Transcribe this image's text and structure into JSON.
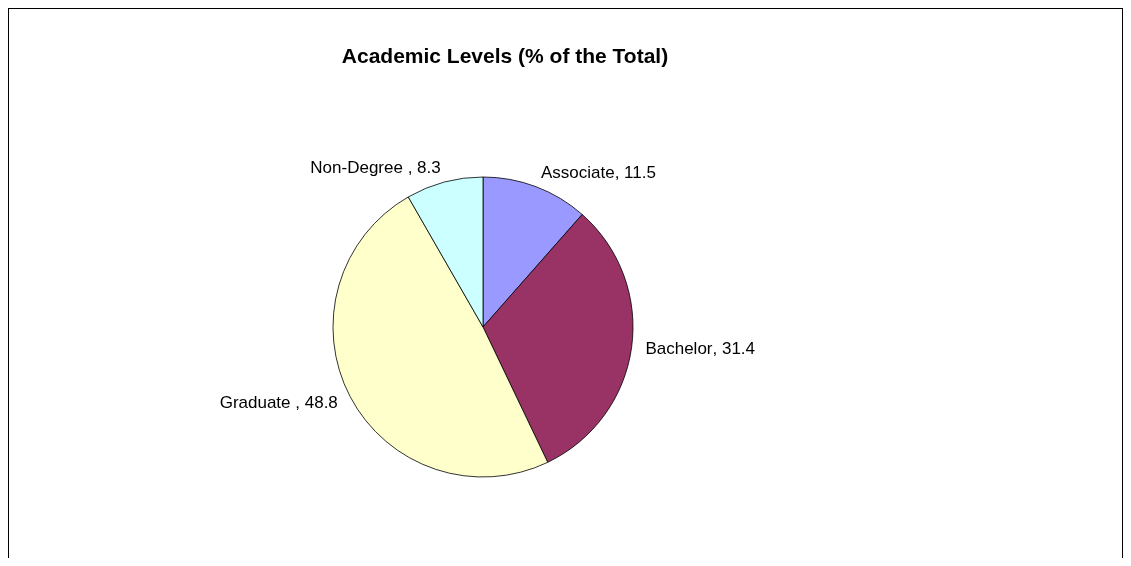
{
  "chart_data": {
    "type": "pie",
    "title": "Academic Levels (% of the Total)",
    "categories": [
      "Associate",
      "Bachelor",
      "Graduate ",
      "Non-Degree "
    ],
    "values": [
      11.5,
      31.4,
      48.8,
      8.3
    ],
    "value_labels": [
      ", 11.5",
      ", 31.4",
      ", 48.8",
      ", 8.3"
    ],
    "colors": [
      "#9999ff",
      "#993366",
      "#ffffcc",
      "#ccffff"
    ],
    "legend": false
  }
}
